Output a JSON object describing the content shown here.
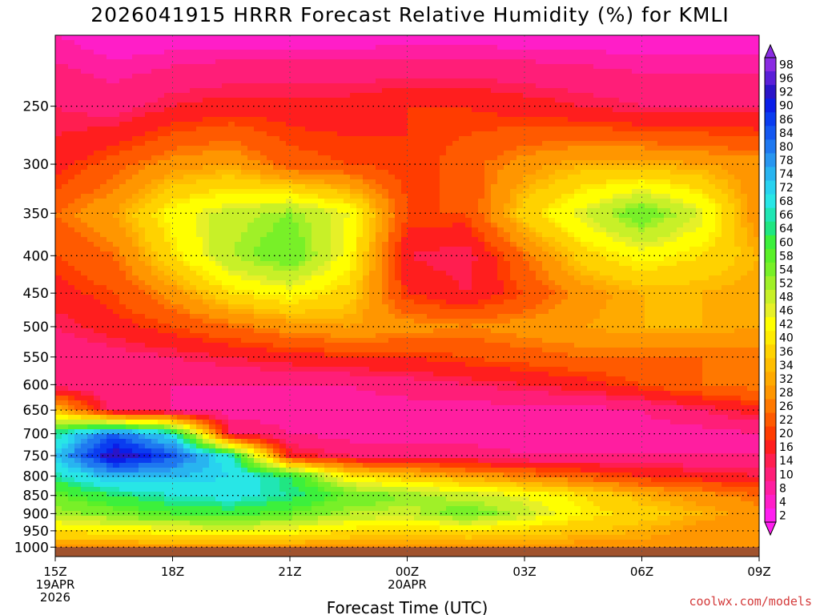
{
  "title": "2026041915 HRRR Forecast Relative Humidity (%) for KMLI",
  "watermark": "coolwx.com/models",
  "chart_data": {
    "type": "heatmap",
    "title": "2026041915 HRRR Forecast Relative Humidity (%) for KMLI",
    "xlabel": "Forecast Time (UTC)",
    "ylabel": "",
    "x_ticks": [
      "15Z",
      "18Z",
      "21Z",
      "00Z",
      "03Z",
      "06Z",
      "09Z"
    ],
    "x_tick_hours": [
      0,
      3,
      6,
      9,
      12,
      15,
      18
    ],
    "x_sublabels": [
      {
        "tick": "15Z",
        "lines": [
          "19APR",
          "2026"
        ]
      },
      {
        "tick": "00Z",
        "lines": [
          "20APR"
        ]
      }
    ],
    "x_range_hours": [
      0,
      18
    ],
    "y_ticks": [
      250,
      300,
      350,
      400,
      450,
      500,
      550,
      600,
      650,
      700,
      750,
      800,
      850,
      900,
      950,
      1000
    ],
    "y_range_hpa": [
      200,
      1030
    ],
    "y_scale": "log-pressure",
    "grid": "dotted",
    "ground_color": "#a0522d",
    "colorbar": {
      "placement": "right",
      "labels": [
        98,
        96,
        92,
        90,
        86,
        84,
        80,
        78,
        74,
        72,
        68,
        66,
        64,
        60,
        58,
        54,
        52,
        48,
        46,
        42,
        40,
        36,
        34,
        32,
        28,
        26,
        22,
        20,
        16,
        14,
        10,
        8,
        4,
        2
      ],
      "colors": [
        "#8a2be2",
        "#5a1fd8",
        "#2a14c8",
        "#0a1ee8",
        "#0a3cf0",
        "#1457f0",
        "#1e78f0",
        "#2896f0",
        "#28b4f0",
        "#28d2f0",
        "#28e6e6",
        "#20e6b4",
        "#20e682",
        "#3cf03c",
        "#5af028",
        "#78f028",
        "#a0f028",
        "#c8f028",
        "#e6f028",
        "#ffff00",
        "#ffeb00",
        "#ffd200",
        "#ffbe00",
        "#ffaa00",
        "#ff9600",
        "#ff7800",
        "#ff5a00",
        "#ff3c00",
        "#ff1e1e",
        "#ff1e50",
        "#ff1e78",
        "#ff1ea0",
        "#ff1ec8",
        "#ff1ef0"
      ]
    },
    "field": {
      "times_hours": [
        0,
        1.5,
        3,
        4.5,
        6,
        7.5,
        9,
        10.5,
        12,
        13.5,
        15,
        16.5,
        18
      ],
      "levels_hpa": [
        200,
        250,
        300,
        350,
        400,
        450,
        500,
        550,
        600,
        650,
        700,
        750,
        800,
        850,
        900,
        950,
        1000
      ],
      "rh": [
        [
          8,
          6,
          6,
          6,
          6,
          6,
          6,
          6,
          6,
          6,
          6,
          6,
          6
        ],
        [
          14,
          12,
          16,
          18,
          18,
          18,
          20,
          20,
          18,
          16,
          14,
          14,
          14
        ],
        [
          18,
          24,
          30,
          32,
          24,
          22,
          20,
          24,
          30,
          34,
          34,
          32,
          30
        ],
        [
          26,
          32,
          44,
          50,
          54,
          46,
          22,
          22,
          38,
          48,
          58,
          48,
          28
        ],
        [
          22,
          26,
          40,
          52,
          58,
          44,
          16,
          14,
          26,
          38,
          44,
          40,
          34
        ],
        [
          18,
          22,
          30,
          40,
          44,
          38,
          20,
          16,
          22,
          30,
          34,
          34,
          32
        ],
        [
          14,
          18,
          22,
          26,
          30,
          32,
          30,
          28,
          30,
          32,
          34,
          34,
          32
        ],
        [
          10,
          12,
          14,
          16,
          18,
          20,
          20,
          22,
          24,
          26,
          26,
          26,
          26
        ],
        [
          12,
          10,
          10,
          10,
          10,
          10,
          12,
          14,
          16,
          18,
          22,
          26,
          28
        ],
        [
          36,
          12,
          10,
          8,
          8,
          8,
          8,
          8,
          8,
          8,
          10,
          14,
          18
        ],
        [
          66,
          84,
          70,
          14,
          10,
          8,
          8,
          8,
          8,
          8,
          8,
          8,
          10
        ],
        [
          74,
          96,
          86,
          68,
          18,
          14,
          12,
          12,
          10,
          10,
          10,
          10,
          10
        ],
        [
          66,
          76,
          74,
          72,
          64,
          42,
          36,
          32,
          28,
          24,
          20,
          18,
          16
        ],
        [
          58,
          64,
          68,
          70,
          66,
          58,
          54,
          50,
          46,
          40,
          34,
          30,
          26
        ],
        [
          52,
          56,
          60,
          62,
          58,
          52,
          50,
          58,
          50,
          42,
          38,
          34,
          30
        ],
        [
          40,
          42,
          44,
          46,
          44,
          40,
          38,
          40,
          38,
          36,
          34,
          30,
          28
        ],
        [
          30,
          30,
          30,
          30,
          30,
          30,
          30,
          30,
          30,
          30,
          30,
          30,
          30
        ]
      ]
    }
  }
}
